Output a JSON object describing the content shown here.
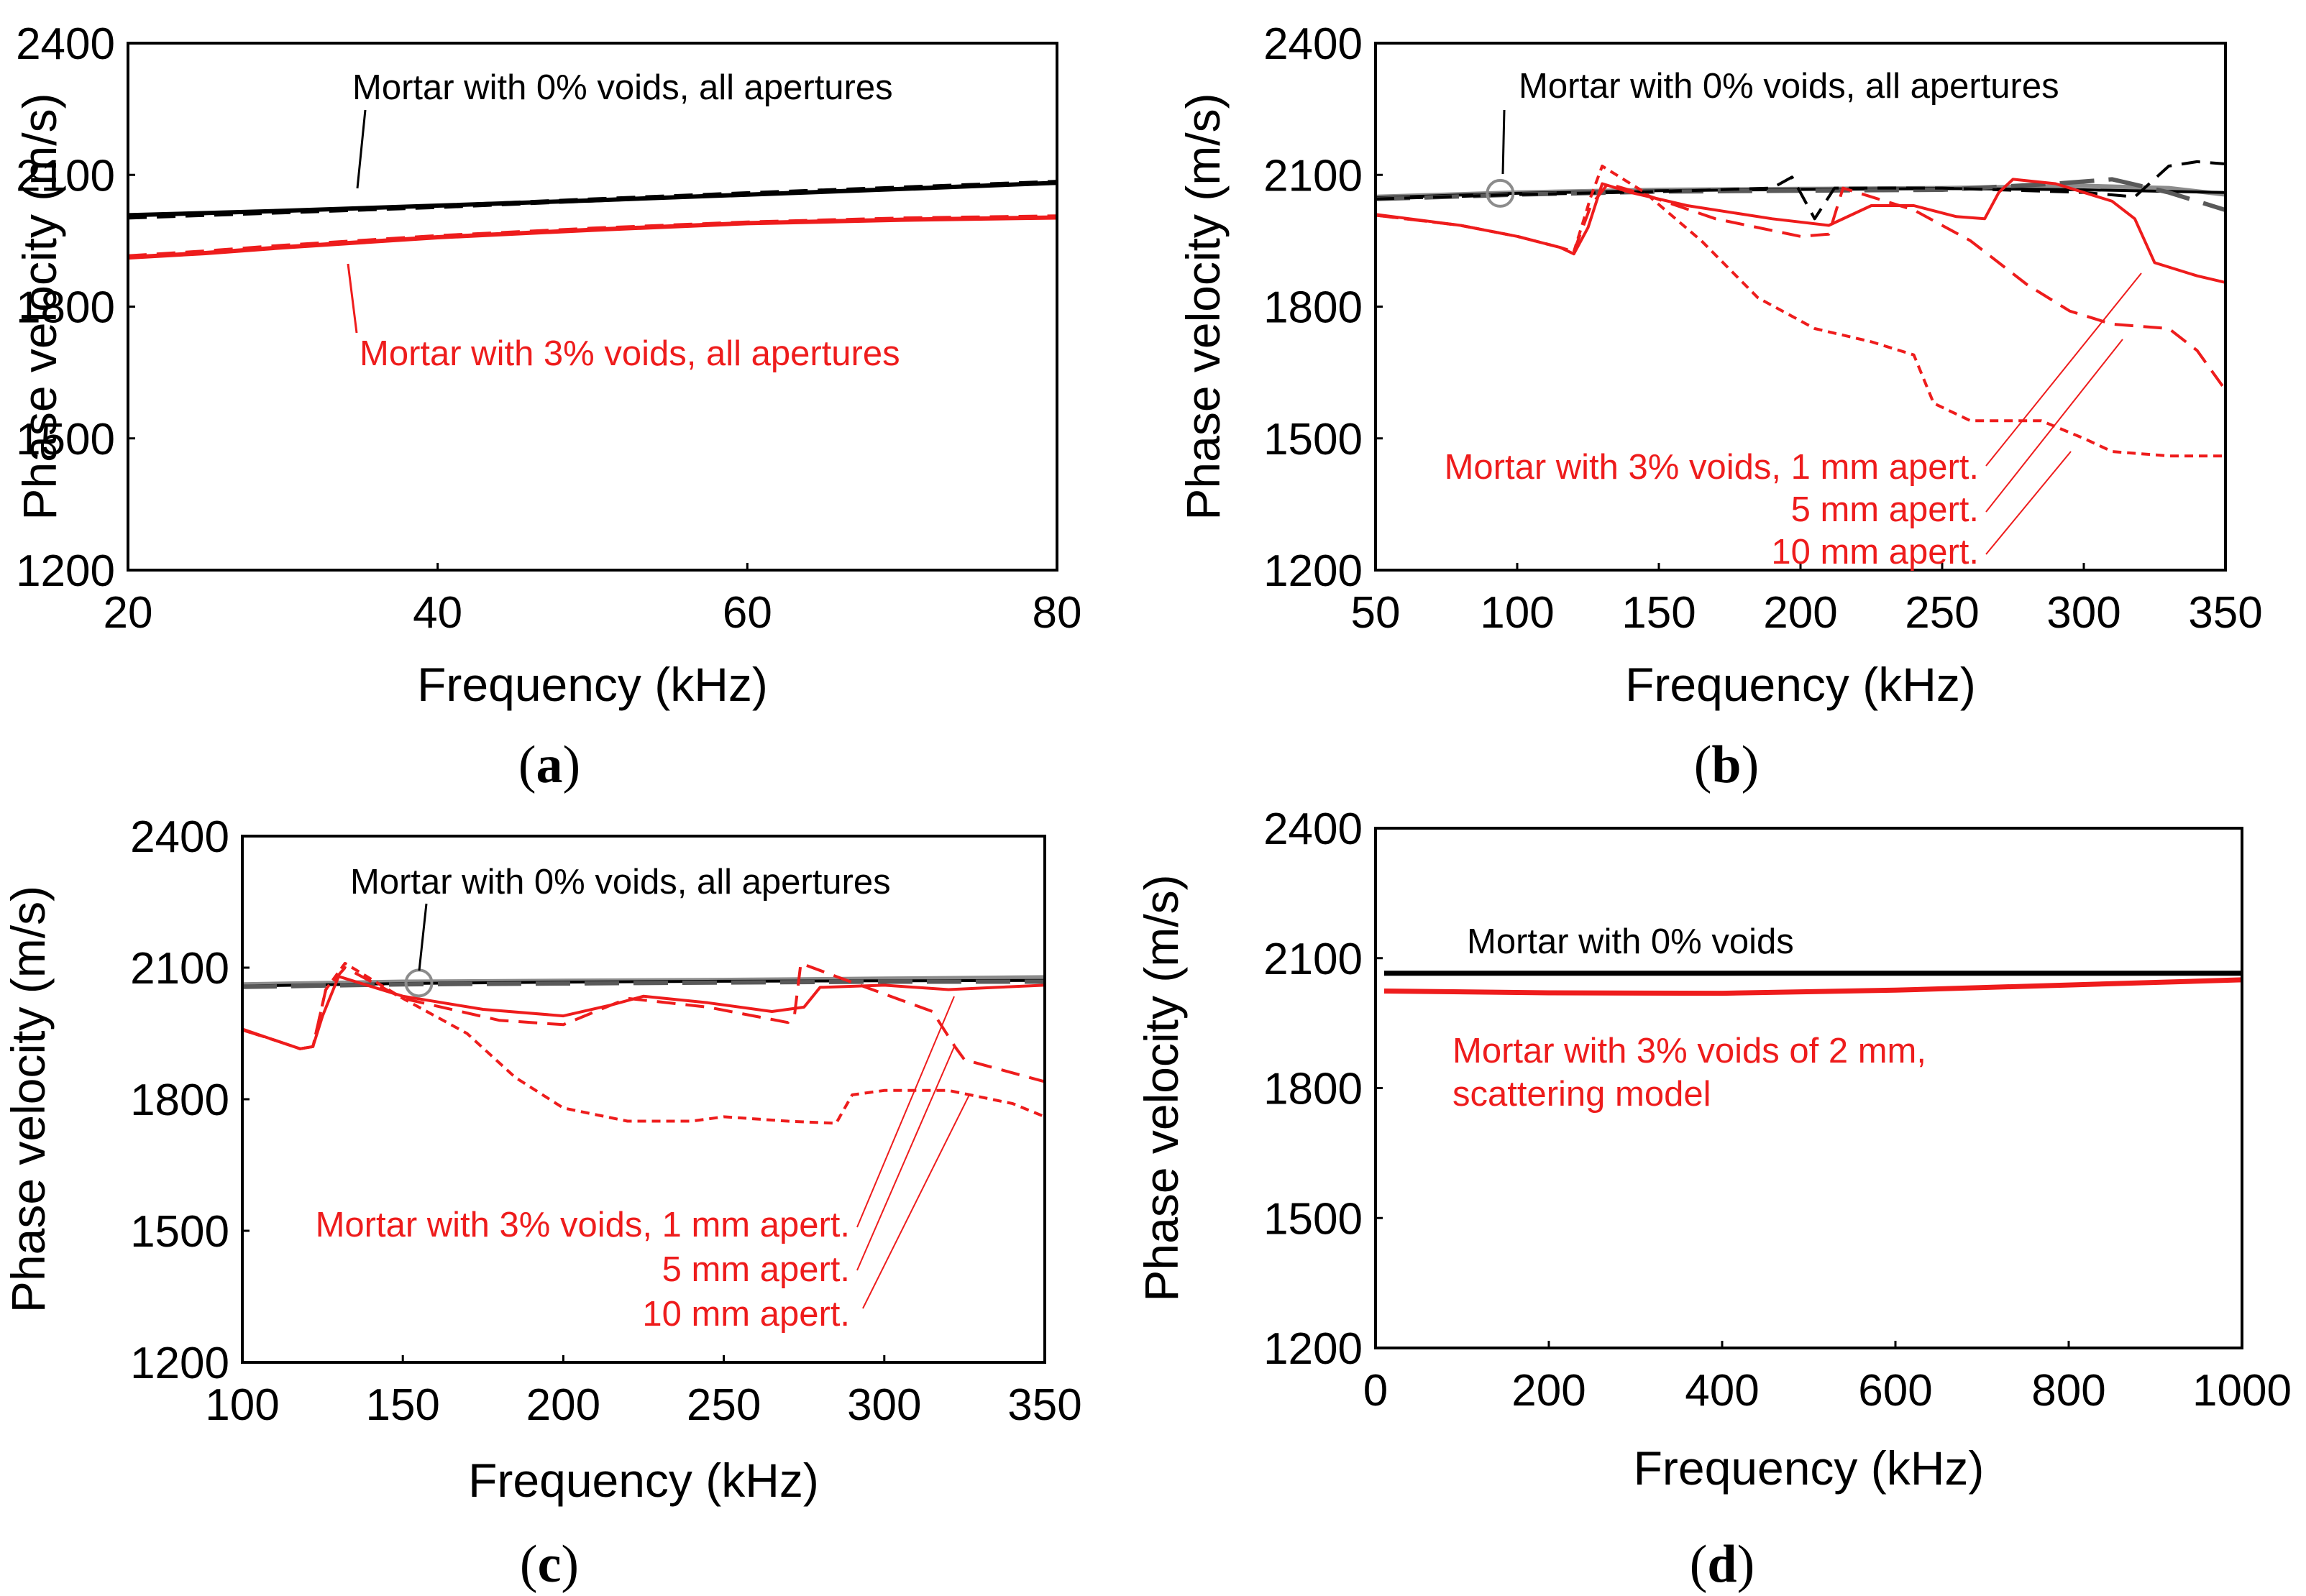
{
  "colors": {
    "black": "#000000",
    "red": "#ee1c1c",
    "gray": "#8c8c8c",
    "darkgray": "#595959"
  },
  "chart_data": [
    {
      "id": "a",
      "type": "line",
      "caption_open": "(",
      "caption_letter": "a",
      "caption_close": ")",
      "xlabel": "Frequency (kHz)",
      "ylabel": "Phase velocity (m/s)",
      "xlim": [
        20,
        80
      ],
      "ylim": [
        1200,
        2400
      ],
      "xticks": [
        20,
        40,
        60,
        80
      ],
      "yticks": [
        1200,
        1500,
        1800,
        2100,
        2400
      ],
      "series": [
        {
          "name": "0% voids, 1 mm",
          "color": "black",
          "dash": "solid",
          "width": 6,
          "x": [
            20,
            30,
            40,
            50,
            60,
            70,
            80
          ],
          "y": [
            2008,
            2018,
            2030,
            2042,
            2055,
            2068,
            2082
          ]
        },
        {
          "name": "0% voids, 5 mm",
          "color": "black",
          "dash": "dashed",
          "width": 7,
          "x": [
            20,
            30,
            40,
            50,
            60,
            70,
            80
          ],
          "y": [
            2004,
            2016,
            2028,
            2043,
            2057,
            2070,
            2083
          ]
        },
        {
          "name": "3% voids, 1 mm",
          "color": "red",
          "dash": "solid",
          "width": 6,
          "x": [
            20,
            25,
            30,
            40,
            50,
            60,
            70,
            80
          ],
          "y": [
            1912,
            1922,
            1935,
            1958,
            1975,
            1990,
            1998,
            2003
          ]
        },
        {
          "name": "3% voids, 10 mm",
          "color": "red",
          "dash": "dashed",
          "width": 5,
          "x": [
            20,
            25,
            30,
            40,
            50,
            60,
            70,
            80
          ],
          "y": [
            1915,
            1926,
            1939,
            1961,
            1978,
            1992,
            2001,
            2006
          ]
        }
      ],
      "annotations": [
        {
          "text": "Mortar with 0% voids, all apertures",
          "color": "black"
        },
        {
          "text": "Mortar with 3% voids, all apertures",
          "color": "red"
        }
      ]
    },
    {
      "id": "b",
      "type": "line",
      "caption_open": "(",
      "caption_letter": "b",
      "caption_close": ")",
      "xlabel": "Frequency (kHz)",
      "ylabel": "Phase velocity (m/s)",
      "xlim": [
        50,
        350
      ],
      "ylim": [
        1200,
        2400
      ],
      "xticks": [
        50,
        100,
        150,
        200,
        250,
        300,
        350
      ],
      "yticks": [
        1200,
        1500,
        1800,
        2100,
        2400
      ],
      "series": [
        {
          "name": "0% voids, gray",
          "color": "gray",
          "dash": "solid",
          "width": 6,
          "x": [
            50,
            100,
            150,
            200,
            250,
            300,
            330,
            350
          ],
          "y": [
            2050,
            2060,
            2066,
            2068,
            2070,
            2075,
            2070,
            2055
          ]
        },
        {
          "name": "0% voids, 1 mm",
          "color": "black",
          "dash": "solid",
          "width": 4,
          "x": [
            50,
            100,
            150,
            200,
            250,
            300,
            350
          ],
          "y": [
            2048,
            2058,
            2064,
            2067,
            2069,
            2066,
            2060
          ]
        },
        {
          "name": "0% voids, 5 mm",
          "color": "darkgray",
          "dash": "longdash",
          "width": 6,
          "x": [
            50,
            100,
            150,
            200,
            250,
            290,
            310,
            330,
            350
          ],
          "y": [
            2045,
            2055,
            2062,
            2064,
            2066,
            2080,
            2090,
            2060,
            2020
          ]
        },
        {
          "name": "0% voids, 10 mm",
          "color": "black",
          "dash": "dashed",
          "width": 4,
          "x": [
            50,
            100,
            150,
            190,
            197,
            205,
            212,
            250,
            300,
            318,
            330,
            340,
            350
          ],
          "y": [
            2045,
            2055,
            2062,
            2070,
            2095,
            2000,
            2070,
            2070,
            2060,
            2050,
            2120,
            2130,
            2125
          ]
        },
        {
          "name": "3% voids, 1 mm",
          "color": "red",
          "dash": "solid",
          "width": 4,
          "x": [
            50,
            80,
            100,
            115,
            120,
            125,
            130,
            140,
            160,
            190,
            210,
            225,
            240,
            255,
            265,
            270,
            275,
            290,
            310,
            318,
            325,
            340,
            350
          ],
          "y": [
            2010,
            1985,
            1960,
            1935,
            1920,
            1980,
            2080,
            2060,
            2030,
            2000,
            1985,
            2030,
            2030,
            2005,
            2000,
            2060,
            2090,
            2080,
            2040,
            2000,
            1900,
            1870,
            1855
          ]
        },
        {
          "name": "3% voids, 5 mm",
          "color": "red",
          "dash": "dashed",
          "width": 4,
          "x": [
            50,
            80,
            100,
            115,
            120,
            126,
            132,
            145,
            170,
            200,
            210,
            215,
            240,
            260,
            280,
            295,
            310,
            330,
            340,
            350
          ],
          "y": [
            2008,
            1985,
            1960,
            1935,
            1925,
            2030,
            2080,
            2055,
            2000,
            1960,
            1965,
            2070,
            2020,
            1950,
            1850,
            1790,
            1760,
            1750,
            1700,
            1610
          ]
        },
        {
          "name": "3% voids, 10 mm",
          "color": "red",
          "dash": "dotted",
          "width": 4,
          "x": [
            50,
            80,
            100,
            115,
            120,
            126,
            130,
            145,
            165,
            185,
            205,
            225,
            240,
            247,
            260,
            285,
            300,
            310,
            330,
            350
          ],
          "y": [
            2008,
            1985,
            1960,
            1935,
            1925,
            2050,
            2120,
            2060,
            1950,
            1820,
            1750,
            1720,
            1690,
            1580,
            1540,
            1540,
            1500,
            1470,
            1460,
            1460
          ]
        }
      ],
      "markers": [
        {
          "type": "circle",
          "x": 94,
          "y": 2058,
          "color": "gray"
        }
      ],
      "annotations": [
        {
          "text": "Mortar with 0% voids, all apertures",
          "color": "black"
        },
        {
          "text": "Mortar with 3% voids, 1 mm apert.",
          "color": "red"
        },
        {
          "text": "5 mm apert.",
          "color": "red"
        },
        {
          "text": "10 mm apert.",
          "color": "red"
        }
      ]
    },
    {
      "id": "c",
      "type": "line",
      "caption_open": "(",
      "caption_letter": "c",
      "caption_close": ")",
      "xlabel": "Frequency (kHz)",
      "ylabel": "Phase velocity (m/s)",
      "xlim": [
        100,
        350
      ],
      "ylim": [
        1200,
        2400
      ],
      "xticks": [
        100,
        150,
        200,
        250,
        300,
        350
      ],
      "yticks": [
        1200,
        1500,
        1800,
        2100,
        2400
      ],
      "series": [
        {
          "name": "0% voids, gray",
          "color": "gray",
          "dash": "solid",
          "width": 6,
          "x": [
            100,
            150,
            200,
            250,
            300,
            350
          ],
          "y": [
            2062,
            2068,
            2070,
            2072,
            2075,
            2078
          ]
        },
        {
          "name": "0% voids, 1 mm",
          "color": "black",
          "dash": "solid",
          "width": 4,
          "x": [
            100,
            150,
            200,
            250,
            300,
            350
          ],
          "y": [
            2058,
            2064,
            2067,
            2069,
            2070,
            2071
          ]
        },
        {
          "name": "0% voids, 5 mm",
          "color": "darkgray",
          "dash": "longdash",
          "width": 6,
          "x": [
            100,
            150,
            200,
            250,
            300,
            350
          ],
          "y": [
            2056,
            2062,
            2064,
            2066,
            2068,
            2068
          ]
        },
        {
          "name": "3% voids, 1 mm",
          "color": "red",
          "dash": "solid",
          "width": 4,
          "x": [
            100,
            110,
            118,
            122,
            125,
            130,
            150,
            175,
            200,
            215,
            225,
            245,
            265,
            275,
            280,
            300,
            320,
            335,
            350
          ],
          "y": [
            1960,
            1935,
            1915,
            1920,
            1990,
            2080,
            2035,
            2005,
            1990,
            2015,
            2035,
            2020,
            2000,
            2010,
            2055,
            2060,
            2050,
            2055,
            2060
          ]
        },
        {
          "name": "3% voids, 5 mm",
          "color": "red",
          "dash": "dashed",
          "width": 4,
          "x": [
            100,
            110,
            118,
            122,
            126,
            132,
            150,
            180,
            200,
            220,
            245,
            270,
            272,
            274,
            285,
            300,
            315,
            322,
            325,
            335,
            350
          ],
          "y": [
            1958,
            1935,
            1915,
            1920,
            2050,
            2100,
            2030,
            1980,
            1970,
            2030,
            2010,
            1975,
            1990,
            2110,
            2080,
            2040,
            2000,
            1920,
            1890,
            1870,
            1840
          ]
        },
        {
          "name": "3% voids, 10 mm",
          "color": "red",
          "dash": "dotted",
          "width": 4,
          "x": [
            100,
            110,
            118,
            122,
            126,
            132,
            150,
            170,
            185,
            200,
            220,
            240,
            250,
            270,
            285,
            290,
            300,
            320,
            340,
            350
          ],
          "y": [
            1958,
            1935,
            1915,
            1920,
            2050,
            2110,
            2030,
            1950,
            1850,
            1780,
            1750,
            1750,
            1760,
            1750,
            1745,
            1810,
            1820,
            1820,
            1790,
            1760
          ]
        }
      ],
      "markers": [
        {
          "type": "circle",
          "x": 155,
          "y": 2065,
          "color": "gray"
        }
      ],
      "annotations": [
        {
          "text": "Mortar with 0% voids, all apertures",
          "color": "black"
        },
        {
          "text": "Mortar with 3% voids, 1 mm apert.",
          "color": "red"
        },
        {
          "text": "5 mm apert.",
          "color": "red"
        },
        {
          "text": "10 mm apert.",
          "color": "red"
        }
      ]
    },
    {
      "id": "d",
      "type": "line",
      "caption_open": "(",
      "caption_letter": "d",
      "caption_close": ")",
      "xlabel": "Frequency (kHz)",
      "ylabel": "Phase velocity (m/s)",
      "xlim": [
        0,
        1000
      ],
      "ylim": [
        1200,
        2400
      ],
      "xticks": [
        0,
        200,
        400,
        600,
        800,
        1000
      ],
      "yticks": [
        1200,
        1500,
        1800,
        2100,
        2400
      ],
      "series": [
        {
          "name": "0% voids",
          "color": "black",
          "dash": "solid",
          "width": 7,
          "x": [
            10,
            1000
          ],
          "y": [
            2065,
            2065
          ]
        },
        {
          "name": "3% voids of 2 mm, scattering model",
          "color": "red",
          "dash": "solid",
          "width": 7,
          "x": [
            10,
            200,
            400,
            600,
            800,
            1000
          ],
          "y": [
            2024,
            2020,
            2019,
            2026,
            2038,
            2050
          ]
        }
      ],
      "annotations": [
        {
          "text": "Mortar with 0% voids",
          "color": "black"
        },
        {
          "text": "Mortar with 3% voids of 2 mm,",
          "color": "red"
        },
        {
          "text": "scattering model",
          "color": "red"
        }
      ]
    }
  ]
}
